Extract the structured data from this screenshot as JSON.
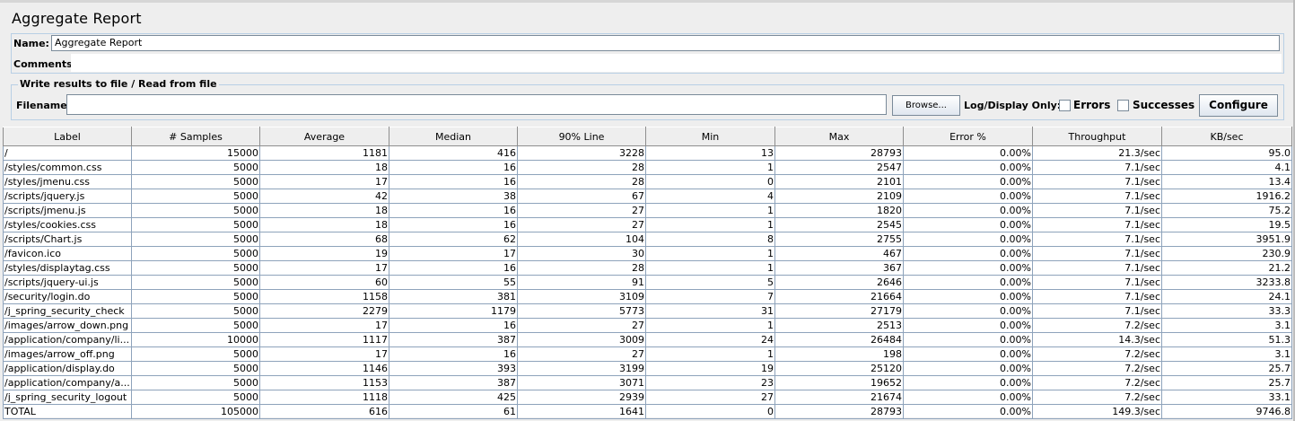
{
  "title": "Aggregate Report",
  "name_label": "Name:",
  "name_value": "Aggregate Report",
  "comments_label": "Comments:",
  "file_group_title": "Write results to file / Read from file",
  "filename_label": "Filename",
  "browse_label": "Browse...",
  "log_display_label": "Log/Display Only:",
  "errors_label": "Errors",
  "successes_label": "Successes",
  "configure_label": "Configure",
  "columns": [
    "Label",
    "# Samples",
    "Average",
    "Median",
    "90% Line",
    "Min",
    "Max",
    "Error %",
    "Throughput",
    "KB/sec"
  ],
  "rows": [
    [
      "/",
      "15000",
      "1181",
      "416",
      "3228",
      "13",
      "28793",
      "0.00%",
      "21.3/sec",
      "95.0"
    ],
    [
      "/styles/common.css",
      "5000",
      "18",
      "16",
      "28",
      "1",
      "2547",
      "0.00%",
      "7.1/sec",
      "4.1"
    ],
    [
      "/styles/jmenu.css",
      "5000",
      "17",
      "16",
      "28",
      "0",
      "2101",
      "0.00%",
      "7.1/sec",
      "13.4"
    ],
    [
      "/scripts/jquery.js",
      "5000",
      "42",
      "38",
      "67",
      "4",
      "2109",
      "0.00%",
      "7.1/sec",
      "1916.2"
    ],
    [
      "/scripts/jmenu.js",
      "5000",
      "18",
      "16",
      "27",
      "1",
      "1820",
      "0.00%",
      "7.1/sec",
      "75.2"
    ],
    [
      "/styles/cookies.css",
      "5000",
      "18",
      "16",
      "27",
      "1",
      "2545",
      "0.00%",
      "7.1/sec",
      "19.5"
    ],
    [
      "/scripts/Chart.js",
      "5000",
      "68",
      "62",
      "104",
      "8",
      "2755",
      "0.00%",
      "7.1/sec",
      "3951.9"
    ],
    [
      "/favicon.ico",
      "5000",
      "19",
      "17",
      "30",
      "1",
      "467",
      "0.00%",
      "7.1/sec",
      "230.9"
    ],
    [
      "/styles/displaytag.css",
      "5000",
      "17",
      "16",
      "28",
      "1",
      "367",
      "0.00%",
      "7.1/sec",
      "21.2"
    ],
    [
      "/scripts/jquery-ui.js",
      "5000",
      "60",
      "55",
      "91",
      "5",
      "2646",
      "0.00%",
      "7.1/sec",
      "3233.8"
    ],
    [
      "/security/login.do",
      "5000",
      "1158",
      "381",
      "3109",
      "7",
      "21664",
      "0.00%",
      "7.1/sec",
      "24.1"
    ],
    [
      "/j_spring_security_check",
      "5000",
      "2279",
      "1179",
      "5773",
      "31",
      "27179",
      "0.00%",
      "7.1/sec",
      "33.3"
    ],
    [
      "/images/arrow_down.png",
      "5000",
      "17",
      "16",
      "27",
      "1",
      "2513",
      "0.00%",
      "7.2/sec",
      "3.1"
    ],
    [
      "/application/company/li...",
      "10000",
      "1117",
      "387",
      "3009",
      "24",
      "26484",
      "0.00%",
      "14.3/sec",
      "51.3"
    ],
    [
      "/images/arrow_off.png",
      "5000",
      "17",
      "16",
      "27",
      "1",
      "198",
      "0.00%",
      "7.2/sec",
      "3.1"
    ],
    [
      "/application/display.do",
      "5000",
      "1146",
      "393",
      "3199",
      "19",
      "25120",
      "0.00%",
      "7.2/sec",
      "25.7"
    ],
    [
      "/application/company/a...",
      "5000",
      "1153",
      "387",
      "3071",
      "23",
      "19652",
      "0.00%",
      "7.2/sec",
      "25.7"
    ],
    [
      "/j_spring_security_logout",
      "5000",
      "1118",
      "425",
      "2939",
      "27",
      "21674",
      "0.00%",
      "7.2/sec",
      "33.1"
    ],
    [
      "TOTAL",
      "105000",
      "616",
      "61",
      "1641",
      "0",
      "28793",
      "0.00%",
      "149.3/sec",
      "9746.8"
    ]
  ]
}
